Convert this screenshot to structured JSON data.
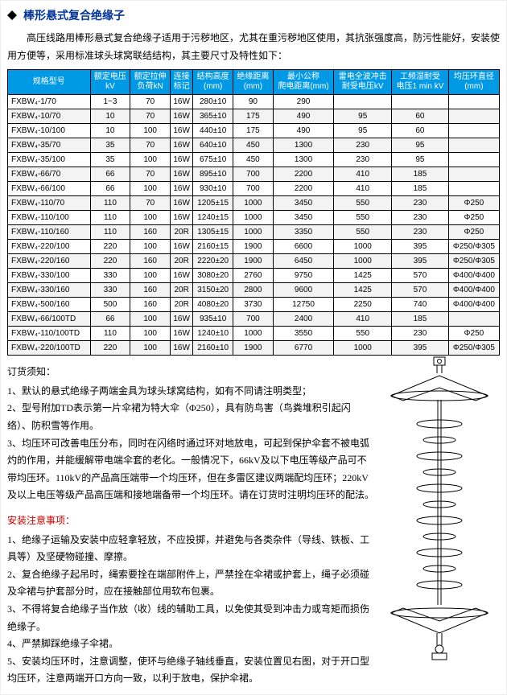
{
  "title": "棒形悬式复合绝缘子",
  "intro": "高压线路用棒形悬式复合绝缘子适用于污秽地区，尤其在重污秽地区使用，其抗张强度高，防污性能好，安装使用方便等，采用标准球头球窝联结结构，其主要尺寸及特性如下：",
  "columns": [
    "规格型号",
    "额定电压\nkV",
    "额定拉伸\n负荷kN",
    "连接\n标记",
    "结构高度\n(mm)",
    "绝缘距离\n(mm)",
    "最小公称\n爬电距离(mm)",
    "雷电全波冲击\n耐受电压kV",
    "工频湿耐受\n电压1 min kV",
    "均压环直径\n(mm)"
  ],
  "rows": [
    [
      "FXBW₄-1/70",
      "1~3",
      "70",
      "16W",
      "280±10",
      "90",
      "290",
      "",
      "",
      ""
    ],
    [
      "FXBW₄-10/70",
      "10",
      "70",
      "16W",
      "365±10",
      "175",
      "490",
      "95",
      "60",
      ""
    ],
    [
      "FXBW₄-10/100",
      "10",
      "100",
      "16W",
      "440±10",
      "175",
      "490",
      "95",
      "60",
      ""
    ],
    [
      "FXBW₄-35/70",
      "35",
      "70",
      "16W",
      "640±10",
      "450",
      "1300",
      "230",
      "95",
      ""
    ],
    [
      "FXBW₄-35/100",
      "35",
      "100",
      "16W",
      "675±10",
      "450",
      "1300",
      "230",
      "95",
      ""
    ],
    [
      "FXBW₄-66/70",
      "66",
      "70",
      "16W",
      "895±10",
      "700",
      "2200",
      "410",
      "185",
      ""
    ],
    [
      "FXBW₄-66/100",
      "66",
      "100",
      "16W",
      "930±10",
      "700",
      "2200",
      "410",
      "185",
      ""
    ],
    [
      "FXBW₄-110/70",
      "110",
      "70",
      "16W",
      "1205±15",
      "1000",
      "3450",
      "550",
      "230",
      "Φ250"
    ],
    [
      "FXBW₄-110/100",
      "110",
      "100",
      "16W",
      "1240±15",
      "1000",
      "3450",
      "550",
      "230",
      "Φ250"
    ],
    [
      "FXBW₄-110/160",
      "110",
      "160",
      "20R",
      "1305±15",
      "1000",
      "3350",
      "550",
      "230",
      "Φ250"
    ],
    [
      "FXBW₄-220/100",
      "220",
      "100",
      "16W",
      "2160±15",
      "1900",
      "6600",
      "1000",
      "395",
      "Φ250/Φ305"
    ],
    [
      "FXBW₄-220/160",
      "220",
      "160",
      "20R",
      "2220±20",
      "1900",
      "6450",
      "1000",
      "395",
      "Φ250/Φ305"
    ],
    [
      "FXBW₄-330/100",
      "330",
      "100",
      "16W",
      "3080±20",
      "2760",
      "9750",
      "1425",
      "570",
      "Φ400/Φ400"
    ],
    [
      "FXBW₄-330/160",
      "330",
      "160",
      "20R",
      "3150±20",
      "2800",
      "9600",
      "1425",
      "570",
      "Φ400/Φ400"
    ],
    [
      "FXBW₄-500/160",
      "500",
      "160",
      "20R",
      "4080±20",
      "3730",
      "12750",
      "2250",
      "740",
      "Φ400/Φ400"
    ],
    [
      "FXBW₄-66/100TD",
      "66",
      "100",
      "16W",
      "935±10",
      "700",
      "2400",
      "410",
      "185",
      ""
    ],
    [
      "FXBW₄-110/100TD",
      "110",
      "100",
      "16W",
      "1240±10",
      "1000",
      "3550",
      "550",
      "230",
      "Φ250"
    ],
    [
      "FXBW₄-220/100TD",
      "220",
      "100",
      "16W",
      "2160±10",
      "1900",
      "6770",
      "1000",
      "395",
      "Φ250/Φ305"
    ]
  ],
  "order_label": "订货须知：",
  "order_notes": [
    "1、默认的悬式绝缘子两端金具为球头球窝结构，如有不同请注明类型；",
    "2、型号附加TD表示第一片伞裙为特大伞（Φ250），具有防鸟害（鸟粪堆积引起闪络）、防积雪等作用。",
    "3、均压环可改善电压分布，同时在闪络时通过环对地放电，可起到保护伞套不被电弧灼的作用，并能缓解带电端伞套的老化。一般情况下，66kV及以下电压等级产品可不带均压环。110kV的产品高压端带一个均压环，但在多雷区建议两端配均压环；220kV及以上电压等级产品高压端和接地端备带一个均压环。请在订货时注明均压环的配法。"
  ],
  "install_label": "安装注意事项：",
  "install_notes": [
    "1、绝缘子运输及安装中应轻拿轻放，不应投掷，并避免与各类杂件（导线、铁板、工具等）及坚硬物碰撞、摩擦。",
    "2、复合绝缘子起吊时，绳索要拴在端部附件上，严禁拴在伞裙或护套上，绳子必须碰及伞裙与护套部分时，应在接触部位用软布包裹。",
    "3、不得将复合绝缘子当作放（收）线的辅助工具，以免使其受到冲击力或弯矩而损伤绝缘子。",
    "4、严禁脚踩绝缘子伞裙。",
    "5、安装均压环时，注意调整，使环与绝缘子轴线垂直，安装位置见右图，对于开口型均压环，注意两端开口方向一致，以利于放电，保护伞裙。"
  ],
  "colors": {
    "title": "#003399",
    "header_bg": "#0099e6",
    "header_fg": "#ffffff",
    "red": "#cc0000",
    "alt_row": "#f3f3f3"
  }
}
